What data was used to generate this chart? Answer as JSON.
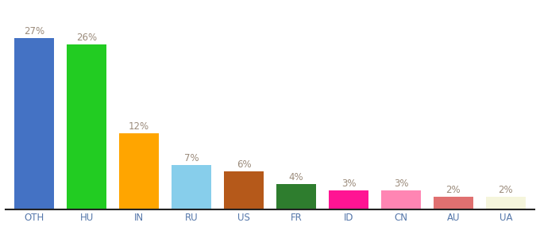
{
  "categories": [
    "OTH",
    "HU",
    "IN",
    "RU",
    "US",
    "FR",
    "ID",
    "CN",
    "AU",
    "UA"
  ],
  "values": [
    27,
    26,
    12,
    7,
    6,
    4,
    3,
    3,
    2,
    2
  ],
  "bar_colors": [
    "#4472c4",
    "#22cc22",
    "#ffa500",
    "#87ceeb",
    "#b5591a",
    "#2e7d2e",
    "#ff1493",
    "#ff85b3",
    "#e07070",
    "#f5f5dc"
  ],
  "label_color": "#9b8b7b",
  "background_color": "#ffffff",
  "xlabel_color": "#5577aa",
  "ylim": [
    0,
    30
  ],
  "label_fontsize": 8.5,
  "tick_fontsize": 8.5,
  "bar_width": 0.75
}
